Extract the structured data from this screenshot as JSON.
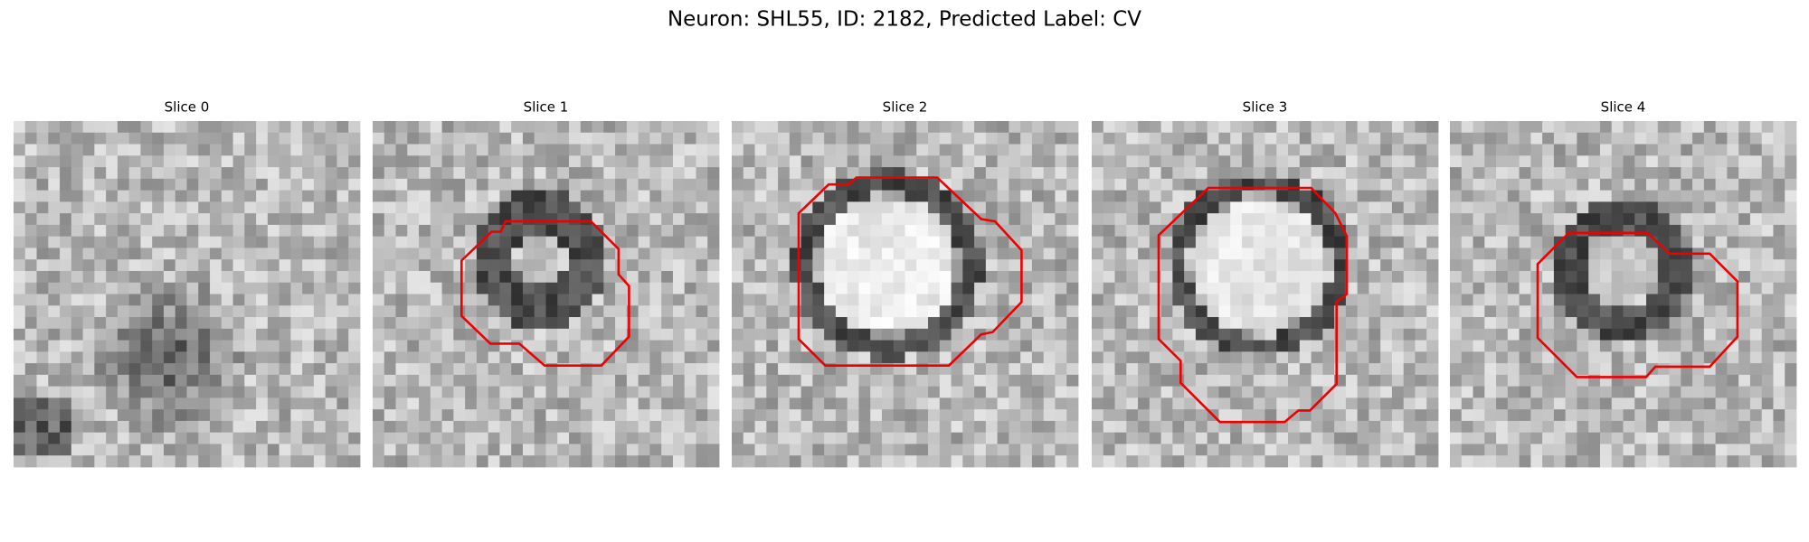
{
  "title": "Neuron: SHL55, ID: 2182, Predicted Label: CV",
  "panels": [
    {
      "title": "Slice 0"
    },
    {
      "title": "Slice 1"
    },
    {
      "title": "Slice 2"
    },
    {
      "title": "Slice 3"
    },
    {
      "title": "Slice 4"
    }
  ]
}
